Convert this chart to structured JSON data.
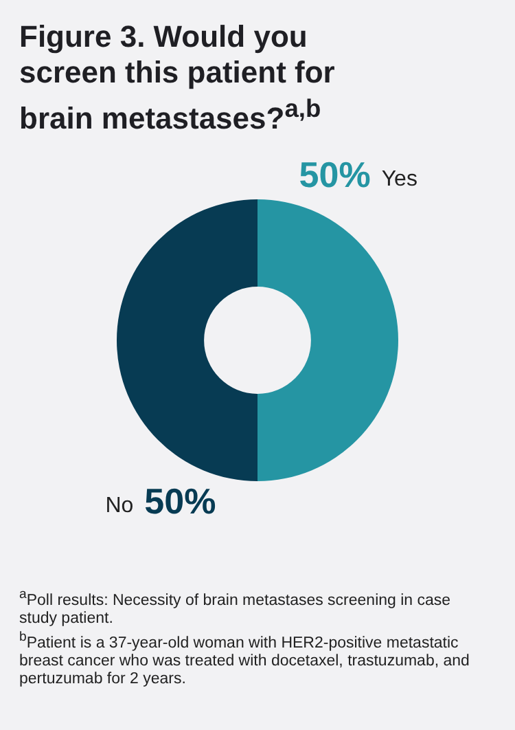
{
  "chart_data": {
    "type": "donut",
    "title": "Figure 3. Would you screen this patient for brain metastases?$^{a,b}$",
    "categories": [
      "Yes",
      "No"
    ],
    "values": [
      50,
      50
    ],
    "colors": [
      "#2595a3",
      "#073b53"
    ],
    "value_labels": [
      "50%",
      "50%"
    ],
    "legend": false,
    "annotations": [
      "$^{a}$Poll results: Necessity of brain metastases screening in case study patient.",
      "$^{b}$Patient is a 37-year-old woman with HER2-positive metastatic breast cancer who was treated with docetaxel, trastuzumab, and pertuzumab for 2 years."
    ]
  }
}
